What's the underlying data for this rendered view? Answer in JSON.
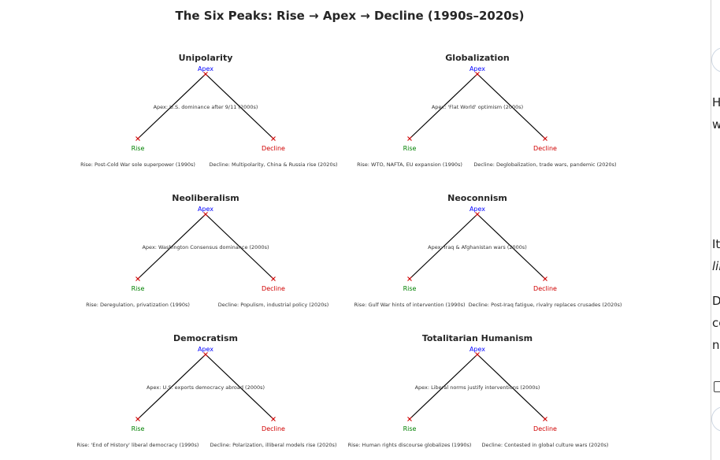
{
  "title": "The Six Peaks: Rise → Apex → Decline (1990s–2020s)",
  "marker_labels": {
    "apex": "Apex",
    "rise": "Rise",
    "decline": "Decline"
  },
  "colors": {
    "apex": "#0000ff",
    "rise": "#008000",
    "decline": "#d00000",
    "marker": "#d00000",
    "line": "#000000"
  },
  "panels": [
    {
      "title": "Unipolarity",
      "apex": "Apex: U.S. dominance after 9/11 (2000s)",
      "rise": "Rise: Post-Cold War sole superpower (1990s)",
      "decline": "Decline: Multipolarity, China & Russia rise (2020s)"
    },
    {
      "title": "Globalization",
      "apex": "Apex: 'Flat World' optimism (2000s)",
      "rise": "Rise: WTO, NAFTA, EU expansion (1990s)",
      "decline": "Decline: Deglobalization, trade wars, pandemic (2020s)"
    },
    {
      "title": "Neoliberalism",
      "apex": "Apex: Washington Consensus dominance (2000s)",
      "rise": "Rise: Deregulation, privatization (1990s)",
      "decline": "Decline: Populism, industrial policy (2020s)"
    },
    {
      "title": "Neoconnism",
      "apex": "Apex: Iraq & Afghanistan wars (2000s)",
      "rise": "Rise: Gulf War hints of intervention (1990s)",
      "decline": "Decline: Post-Iraq fatigue, rivalry replaces crusades (2020s)"
    },
    {
      "title": "Democratism",
      "apex": "Apex: U.S. exports democracy abroad (2000s)",
      "rise": "Rise: 'End of History' liberal democracy (1990s)",
      "decline": "Decline: Polarization, illiberal models rise (2020s)"
    },
    {
      "title": "Totalitarian Humanism",
      "apex": "Apex: Liberal norms justify interventions (2000s)",
      "rise": "Rise: Human rights discourse globalizes (1990s)",
      "decline": "Decline: Contested in global culture wars (2020s)"
    }
  ],
  "side_window": {
    "lines": [
      "H",
      "w",
      "It",
      "lil",
      "D",
      "cc",
      "nc"
    ]
  }
}
